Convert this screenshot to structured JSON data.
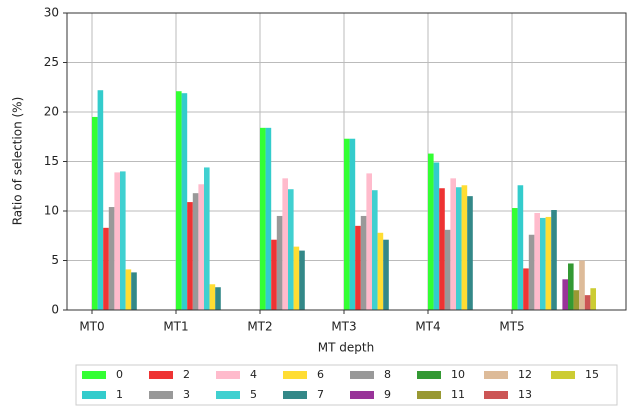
{
  "chart_data": {
    "type": "bar",
    "x_label": "MT depth",
    "y_label": "Ratio of selection (%)",
    "categories": [
      "MT0",
      "MT1",
      "MT2",
      "MT3",
      "MT4",
      "MT5"
    ],
    "ylim": [
      0,
      30
    ],
    "yticks": [
      0,
      5,
      10,
      15,
      20,
      25,
      30
    ],
    "grid": true,
    "legend": "bottom",
    "series": [
      {
        "name": "0",
        "color": "#33ff33",
        "values": [
          19.5,
          22.1,
          18.4,
          17.3,
          15.8,
          10.3
        ]
      },
      {
        "name": "1",
        "color": "#33cccc",
        "values": [
          22.2,
          21.9,
          18.4,
          17.3,
          14.9,
          12.6
        ]
      },
      {
        "name": "2",
        "color": "#ee3333",
        "values": [
          8.3,
          10.9,
          7.1,
          8.5,
          12.3,
          4.2
        ]
      },
      {
        "name": "3",
        "color": "#999999",
        "values": [
          10.4,
          11.8,
          9.5,
          9.5,
          8.1,
          7.6
        ]
      },
      {
        "name": "4",
        "color": "#ffbbcc",
        "values": [
          13.9,
          12.7,
          13.3,
          13.8,
          13.3,
          9.8
        ]
      },
      {
        "name": "5",
        "color": "#40d0d0",
        "values": [
          14.0,
          14.4,
          12.2,
          12.1,
          12.4,
          9.3
        ]
      },
      {
        "name": "6",
        "color": "#ffdd33",
        "values": [
          4.1,
          2.6,
          6.4,
          7.8,
          12.6,
          9.4
        ]
      },
      {
        "name": "7",
        "color": "#338888",
        "values": [
          3.8,
          2.3,
          6.0,
          7.1,
          11.5,
          10.1
        ]
      },
      {
        "name": "8",
        "color": "#999999",
        "values": [
          null,
          null,
          null,
          null,
          null,
          null
        ]
      },
      {
        "name": "9",
        "color": "#993399",
        "values": [
          null,
          null,
          null,
          null,
          null,
          3.1
        ]
      },
      {
        "name": "10",
        "color": "#339933",
        "values": [
          null,
          null,
          null,
          null,
          null,
          4.7
        ]
      },
      {
        "name": "11",
        "color": "#999933",
        "values": [
          null,
          null,
          null,
          null,
          null,
          2.0
        ]
      },
      {
        "name": "12",
        "color": "#ddbb99",
        "values": [
          null,
          null,
          null,
          null,
          null,
          5.0
        ]
      },
      {
        "name": "13",
        "color": "#cc5555",
        "values": [
          null,
          null,
          null,
          null,
          null,
          1.5
        ]
      },
      {
        "name": "15",
        "color": "#cccc33",
        "values": [
          null,
          null,
          null,
          null,
          null,
          2.2
        ]
      }
    ]
  }
}
